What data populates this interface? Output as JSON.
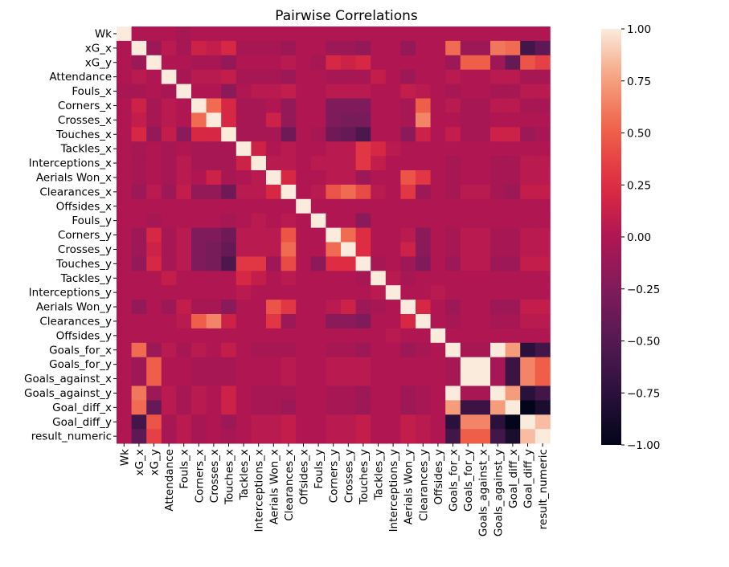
{
  "chart_data": {
    "type": "heatmap",
    "title": "Pairwise Correlations",
    "labels": [
      "Wk",
      "xG_x",
      "xG_y",
      "Attendance",
      "Fouls_x",
      "Corners_x",
      "Crosses_x",
      "Touches_x",
      "Tackles_x",
      "Interceptions_x",
      "Aerials Won_x",
      "Clearances_x",
      "Offsides_x",
      "Fouls_y",
      "Corners_y",
      "Crosses_y",
      "Touches_y",
      "Tackles_y",
      "Interceptions_y",
      "Aerials Won_y",
      "Clearances_y",
      "Offsides_y",
      "Goals_for_x",
      "Goals_for_y",
      "Goals_against_x",
      "Goals_against_y",
      "Goal_diff_x",
      "Goal_diff_y",
      "result_numeric"
    ],
    "colorbar": {
      "min": -1.0,
      "max": 1.0,
      "ticks": [
        "1.00",
        "0.75",
        "0.50",
        "0.25",
        "0.00",
        "−0.25",
        "−0.50",
        "−0.75",
        "−1.00"
      ],
      "tick_values": [
        1.0,
        0.75,
        0.5,
        0.25,
        0.0,
        -0.25,
        -0.5,
        -0.75,
        -1.0
      ]
    },
    "grid": false,
    "legend": "colorbar-right",
    "matrix": [
      [
        1.0,
        0.0,
        0.0,
        0.0,
        -0.05,
        0.0,
        0.0,
        0.0,
        0.0,
        0.0,
        0.0,
        0.0,
        0.0,
        0.0,
        0.0,
        0.0,
        0.0,
        0.0,
        0.0,
        0.0,
        0.0,
        0.0,
        0.0,
        0.0,
        0.0,
        0.0,
        0.0,
        0.0,
        0.0
      ],
      [
        0.0,
        1.0,
        -0.1,
        0.05,
        -0.05,
        0.15,
        0.1,
        0.2,
        -0.05,
        -0.05,
        -0.05,
        -0.1,
        0.0,
        0.0,
        -0.1,
        -0.1,
        -0.15,
        0.0,
        0.0,
        -0.15,
        0.0,
        0.0,
        0.55,
        -0.1,
        -0.1,
        0.6,
        0.55,
        -0.6,
        -0.45
      ],
      [
        0.0,
        -0.1,
        1.0,
        0.0,
        0.0,
        -0.05,
        -0.05,
        -0.15,
        0.0,
        0.0,
        0.0,
        0.05,
        0.0,
        -0.05,
        0.2,
        0.15,
        0.2,
        0.0,
        0.0,
        0.0,
        0.0,
        0.0,
        -0.1,
        0.5,
        0.5,
        -0.1,
        -0.4,
        0.45,
        0.35
      ],
      [
        0.0,
        0.05,
        0.0,
        1.0,
        -0.05,
        0.05,
        0.05,
        0.1,
        -0.05,
        -0.05,
        -0.05,
        -0.1,
        0.0,
        0.0,
        -0.05,
        -0.05,
        -0.05,
        0.1,
        0.0,
        -0.1,
        0.0,
        0.0,
        0.05,
        0.0,
        0.0,
        0.05,
        0.05,
        -0.05,
        -0.05
      ],
      [
        -0.05,
        -0.05,
        0.0,
        -0.05,
        1.0,
        0.0,
        0.0,
        -0.2,
        0.0,
        0.05,
        0.05,
        0.1,
        0.0,
        0.0,
        0.05,
        0.05,
        0.05,
        0.0,
        0.0,
        0.1,
        0.05,
        0.0,
        -0.05,
        0.0,
        0.0,
        -0.05,
        -0.05,
        0.05,
        0.05
      ],
      [
        0.0,
        0.15,
        -0.05,
        0.05,
        0.0,
        1.0,
        0.55,
        0.2,
        -0.05,
        -0.05,
        0.0,
        -0.15,
        0.0,
        0.0,
        -0.25,
        -0.25,
        -0.25,
        0.0,
        0.0,
        -0.05,
        0.5,
        0.0,
        0.05,
        -0.05,
        -0.05,
        0.05,
        0.05,
        -0.05,
        -0.05
      ],
      [
        0.0,
        0.1,
        -0.05,
        0.05,
        0.0,
        0.55,
        1.0,
        0.2,
        -0.05,
        -0.05,
        0.15,
        -0.15,
        0.0,
        0.0,
        -0.25,
        -0.3,
        -0.3,
        0.0,
        0.0,
        -0.05,
        0.65,
        0.0,
        0.0,
        -0.05,
        -0.05,
        0.0,
        0.0,
        0.0,
        0.0
      ],
      [
        0.0,
        0.2,
        -0.15,
        0.1,
        -0.2,
        0.2,
        0.2,
        1.0,
        -0.05,
        -0.05,
        -0.05,
        -0.35,
        0.0,
        -0.05,
        -0.35,
        -0.4,
        -0.55,
        0.0,
        0.0,
        -0.2,
        0.15,
        0.0,
        0.1,
        -0.05,
        -0.05,
        0.15,
        0.15,
        -0.1,
        -0.05
      ],
      [
        0.0,
        -0.05,
        0.0,
        -0.05,
        0.0,
        -0.05,
        -0.05,
        -0.05,
        1.0,
        0.15,
        0.0,
        0.05,
        0.0,
        0.0,
        0.05,
        0.05,
        0.3,
        0.2,
        0.05,
        0.0,
        0.0,
        0.0,
        0.0,
        0.0,
        0.0,
        0.0,
        0.0,
        0.0,
        0.0
      ],
      [
        0.0,
        -0.05,
        0.0,
        -0.05,
        0.05,
        -0.05,
        -0.05,
        -0.05,
        0.15,
        1.0,
        0.05,
        0.05,
        0.0,
        0.05,
        0.05,
        0.05,
        0.3,
        0.1,
        0.0,
        0.0,
        0.0,
        0.0,
        -0.05,
        0.0,
        0.0,
        -0.05,
        -0.05,
        0.05,
        0.05
      ],
      [
        0.0,
        -0.05,
        0.0,
        -0.05,
        0.05,
        0.0,
        0.15,
        -0.05,
        0.0,
        0.05,
        1.0,
        0.2,
        0.0,
        0.0,
        0.05,
        0.05,
        -0.1,
        0.0,
        0.0,
        0.45,
        0.3,
        0.0,
        -0.05,
        0.0,
        0.0,
        -0.05,
        -0.05,
        0.05,
        0.05
      ],
      [
        0.0,
        -0.1,
        0.05,
        -0.1,
        0.1,
        -0.15,
        -0.15,
        -0.35,
        0.05,
        0.05,
        0.2,
        1.0,
        0.0,
        0.05,
        0.45,
        0.55,
        0.4,
        0.05,
        0.0,
        0.3,
        -0.1,
        0.0,
        -0.05,
        0.05,
        0.05,
        -0.05,
        -0.1,
        0.1,
        0.1
      ],
      [
        0.0,
        0.0,
        0.0,
        0.0,
        0.0,
        0.0,
        0.0,
        0.0,
        0.0,
        0.0,
        0.0,
        0.0,
        1.0,
        0.0,
        0.0,
        0.0,
        0.0,
        0.0,
        0.0,
        0.0,
        0.0,
        0.0,
        0.0,
        0.0,
        0.0,
        0.0,
        0.0,
        0.0,
        0.0
      ],
      [
        0.0,
        0.0,
        -0.05,
        0.0,
        0.0,
        0.0,
        0.0,
        -0.05,
        0.0,
        0.05,
        0.0,
        0.05,
        0.0,
        1.0,
        0.0,
        0.0,
        -0.2,
        0.0,
        0.0,
        0.0,
        0.0,
        0.0,
        0.0,
        0.0,
        0.0,
        0.0,
        0.0,
        0.0,
        0.0
      ],
      [
        0.0,
        -0.1,
        0.2,
        -0.05,
        0.05,
        -0.25,
        -0.25,
        -0.35,
        0.05,
        0.05,
        0.05,
        0.45,
        0.0,
        0.0,
        1.0,
        0.55,
        0.25,
        0.0,
        0.0,
        0.05,
        -0.2,
        0.0,
        -0.05,
        0.05,
        0.05,
        -0.05,
        -0.05,
        0.05,
        0.05
      ],
      [
        0.0,
        -0.1,
        0.15,
        -0.05,
        0.05,
        -0.25,
        -0.3,
        -0.4,
        0.05,
        0.05,
        0.05,
        0.55,
        0.0,
        0.0,
        0.55,
        1.0,
        0.25,
        0.0,
        0.0,
        0.15,
        -0.2,
        0.0,
        -0.05,
        0.05,
        0.05,
        -0.05,
        -0.05,
        0.05,
        0.05
      ],
      [
        0.0,
        -0.15,
        0.2,
        -0.05,
        0.05,
        -0.25,
        -0.3,
        -0.55,
        0.3,
        0.3,
        -0.1,
        0.4,
        0.0,
        -0.2,
        0.25,
        0.25,
        1.0,
        -0.05,
        0.0,
        -0.1,
        -0.25,
        0.0,
        -0.1,
        0.05,
        0.05,
        -0.1,
        -0.1,
        0.1,
        0.1
      ],
      [
        0.0,
        0.0,
        0.0,
        0.1,
        0.0,
        0.0,
        0.0,
        0.0,
        0.2,
        0.1,
        0.0,
        0.05,
        0.0,
        0.0,
        0.0,
        0.0,
        -0.05,
        1.0,
        0.05,
        -0.05,
        0.0,
        0.0,
        0.0,
        0.0,
        0.0,
        0.0,
        0.0,
        0.0,
        0.0
      ],
      [
        0.0,
        0.0,
        0.0,
        0.0,
        0.0,
        0.0,
        0.0,
        0.0,
        0.05,
        0.0,
        0.0,
        0.0,
        0.0,
        0.0,
        0.0,
        0.0,
        0.0,
        0.05,
        1.0,
        0.0,
        0.0,
        0.05,
        0.0,
        0.0,
        0.0,
        0.0,
        0.0,
        0.0,
        0.0
      ],
      [
        0.0,
        -0.15,
        0.0,
        -0.1,
        0.1,
        -0.05,
        -0.05,
        -0.2,
        0.0,
        0.0,
        0.45,
        0.3,
        0.0,
        0.0,
        0.05,
        0.15,
        -0.1,
        -0.05,
        0.0,
        1.0,
        0.2,
        0.0,
        -0.1,
        0.0,
        0.0,
        -0.1,
        -0.1,
        0.1,
        0.1
      ],
      [
        0.0,
        0.0,
        0.0,
        0.0,
        0.05,
        0.5,
        0.65,
        0.15,
        0.0,
        0.0,
        0.3,
        -0.1,
        0.0,
        0.0,
        -0.2,
        -0.2,
        -0.25,
        0.0,
        0.0,
        0.2,
        1.0,
        0.0,
        -0.05,
        0.0,
        0.0,
        -0.05,
        -0.05,
        0.05,
        0.05
      ],
      [
        0.0,
        0.0,
        0.0,
        0.0,
        0.0,
        0.0,
        0.0,
        0.0,
        0.0,
        0.0,
        0.0,
        0.0,
        0.0,
        0.0,
        0.0,
        0.0,
        0.0,
        0.0,
        0.05,
        0.0,
        0.0,
        1.0,
        0.0,
        0.0,
        0.0,
        0.0,
        0.0,
        0.0,
        0.0
      ],
      [
        0.0,
        0.55,
        -0.1,
        0.05,
        -0.05,
        0.05,
        0.0,
        0.1,
        0.0,
        -0.05,
        -0.05,
        -0.05,
        0.0,
        0.0,
        -0.05,
        -0.05,
        -0.1,
        0.0,
        0.0,
        -0.1,
        -0.05,
        0.0,
        1.0,
        -0.05,
        -0.05,
        1.0,
        0.75,
        -0.75,
        -0.6
      ],
      [
        0.0,
        -0.1,
        0.5,
        0.0,
        0.0,
        -0.05,
        -0.05,
        -0.05,
        0.0,
        0.0,
        0.0,
        0.05,
        0.0,
        0.0,
        0.05,
        0.05,
        0.05,
        0.0,
        0.0,
        0.0,
        0.0,
        0.0,
        -0.05,
        1.0,
        1.0,
        -0.05,
        -0.65,
        0.65,
        0.5
      ],
      [
        0.0,
        -0.1,
        0.5,
        0.0,
        0.0,
        -0.05,
        -0.05,
        -0.05,
        0.0,
        0.0,
        0.0,
        0.05,
        0.0,
        0.0,
        0.05,
        0.05,
        0.05,
        0.0,
        0.0,
        0.0,
        0.0,
        0.0,
        -0.05,
        1.0,
        1.0,
        -0.05,
        -0.65,
        0.65,
        0.5
      ],
      [
        0.0,
        0.6,
        -0.1,
        0.05,
        -0.05,
        0.05,
        0.0,
        0.15,
        0.0,
        -0.05,
        -0.05,
        -0.05,
        0.0,
        0.0,
        -0.05,
        -0.05,
        -0.1,
        0.0,
        0.0,
        -0.1,
        -0.05,
        0.0,
        1.0,
        -0.05,
        -0.05,
        1.0,
        0.75,
        -0.75,
        -0.6
      ],
      [
        0.0,
        0.55,
        -0.4,
        0.05,
        -0.05,
        0.05,
        0.0,
        0.15,
        0.0,
        -0.05,
        -0.05,
        -0.1,
        0.0,
        0.0,
        -0.05,
        -0.05,
        -0.1,
        0.0,
        0.0,
        -0.1,
        -0.05,
        0.0,
        0.75,
        -0.65,
        -0.65,
        0.75,
        1.0,
        -1.0,
        -0.85
      ],
      [
        0.0,
        -0.6,
        0.45,
        -0.05,
        0.05,
        -0.05,
        0.0,
        -0.1,
        0.0,
        0.05,
        0.05,
        0.1,
        0.0,
        0.0,
        0.05,
        0.05,
        0.1,
        0.0,
        0.0,
        0.1,
        0.05,
        0.0,
        -0.75,
        0.65,
        0.65,
        -0.75,
        -1.0,
        1.0,
        0.85
      ],
      [
        0.0,
        -0.45,
        0.35,
        -0.05,
        0.05,
        -0.05,
        0.0,
        -0.05,
        0.0,
        0.05,
        0.05,
        0.1,
        0.0,
        0.0,
        0.05,
        0.05,
        0.1,
        0.0,
        0.0,
        0.1,
        0.05,
        0.0,
        -0.6,
        0.5,
        0.5,
        -0.6,
        -0.85,
        0.85,
        1.0
      ]
    ]
  }
}
